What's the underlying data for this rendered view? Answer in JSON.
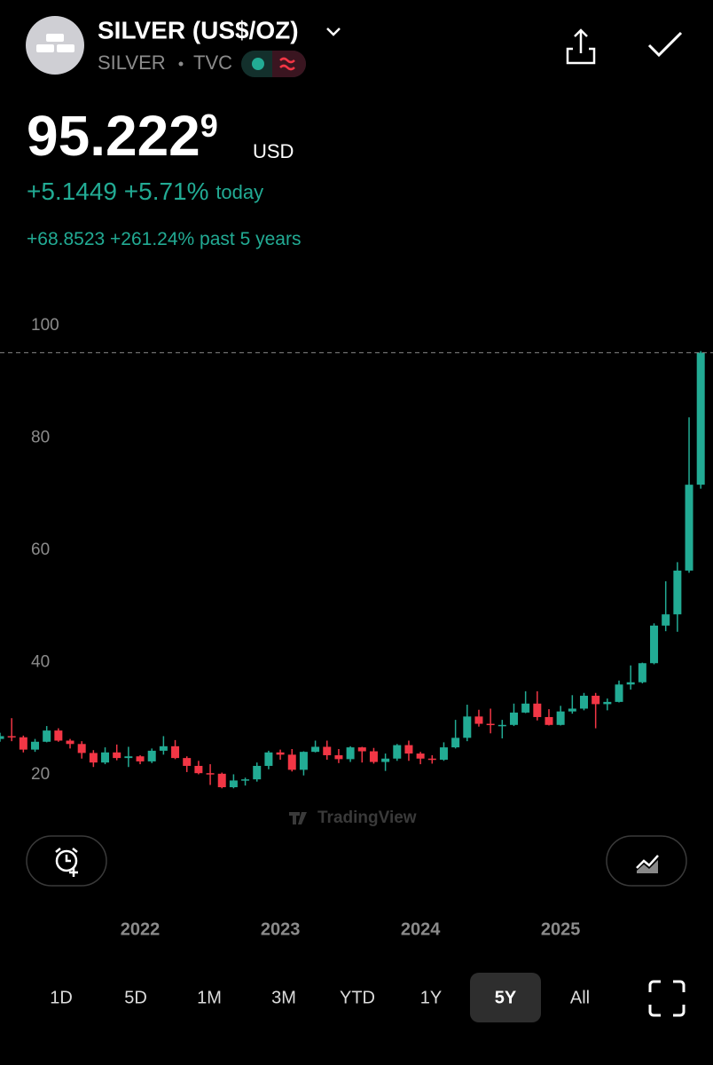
{
  "header": {
    "symbol": "SILVER (US$/OZ)",
    "exchange_name": "SILVER",
    "exchange": "TVC"
  },
  "quote": {
    "price": "95.222",
    "price_sup": "9",
    "currency": "USD",
    "change_today": "+5.1449",
    "change_today_pct": "+5.71%",
    "today_label": "today",
    "change_period": "+68.8523",
    "change_period_pct": "+261.24%",
    "period_label": "past 5 years"
  },
  "chart_data": {
    "type": "candlestick",
    "categories": [
      null,
      null,
      null,
      null,
      null,
      null,
      null,
      null,
      null,
      null,
      null,
      null,
      "2022",
      null,
      null,
      null,
      null,
      null,
      null,
      null,
      null,
      null,
      null,
      null,
      "2023",
      null,
      null,
      null,
      null,
      null,
      null,
      null,
      null,
      null,
      null,
      null,
      "2024",
      null,
      null,
      null,
      null,
      null,
      null,
      null,
      null,
      null,
      null,
      null,
      "2025",
      null,
      null,
      null,
      null,
      null,
      null,
      null,
      null,
      null,
      null,
      null,
      null
    ],
    "open": [
      26.4,
      26.9,
      26.7,
      24.5,
      25.9,
      27.9,
      26.1,
      25.5,
      23.9,
      22.2,
      24.0,
      23.0,
      23.3,
      22.4,
      24.3,
      25.1,
      23.0,
      21.6,
      20.3,
      20.2,
      17.8,
      19.0,
      19.2,
      21.6,
      24.0,
      23.6,
      20.9,
      24.1,
      25.0,
      23.5,
      22.8,
      24.9,
      24.2,
      22.3,
      22.9,
      25.3,
      23.8,
      22.9,
      22.7,
      24.9,
      26.6,
      30.4,
      29.1,
      28.9,
      28.9,
      31.1,
      32.7,
      30.3,
      28.9,
      31.3,
      31.8,
      34.1,
      32.6,
      33.0,
      36.1,
      36.5,
      39.9,
      46.6,
      48.6,
      56.4,
      71.7
    ],
    "high": [
      27.5,
      30.1,
      27.0,
      26.4,
      28.7,
      28.3,
      26.4,
      26.0,
      24.4,
      24.9,
      25.4,
      25.0,
      23.5,
      24.7,
      26.9,
      26.2,
      23.3,
      22.5,
      21.9,
      20.4,
      20.1,
      19.5,
      22.2,
      24.3,
      24.5,
      24.6,
      24.2,
      26.1,
      26.1,
      24.6,
      25.1,
      25.0,
      24.8,
      23.8,
      25.5,
      26.1,
      24.1,
      23.5,
      25.8,
      29.8,
      32.5,
      31.6,
      31.8,
      29.8,
      32.7,
      34.9,
      34.9,
      31.7,
      32.3,
      34.2,
      34.6,
      34.6,
      33.6,
      36.8,
      39.5,
      40.0,
      47.0,
      54.5,
      57.9,
      83.7,
      95.5
    ],
    "low": [
      25.9,
      26.0,
      24.0,
      24.1,
      25.8,
      25.9,
      24.7,
      22.9,
      21.4,
      21.9,
      22.6,
      21.4,
      21.9,
      22.1,
      23.6,
      22.8,
      20.5,
      20.1,
      18.2,
      17.6,
      17.6,
      18.1,
      18.8,
      21.0,
      22.7,
      20.6,
      19.9,
      24.0,
      22.7,
      22.1,
      22.3,
      22.2,
      22.0,
      20.7,
      22.5,
      22.5,
      21.9,
      22.0,
      22.5,
      24.7,
      26.0,
      28.6,
      27.4,
      26.5,
      28.7,
      31.0,
      29.7,
      28.8,
      28.8,
      30.9,
      31.5,
      28.3,
      31.5,
      32.9,
      35.2,
      36.3,
      39.7,
      45.6,
      45.5,
      56.0,
      71.0
    ],
    "close": [
      26.9,
      26.7,
      24.5,
      25.9,
      27.9,
      26.1,
      25.5,
      23.9,
      22.2,
      24.0,
      23.0,
      23.3,
      22.4,
      24.3,
      25.1,
      23.0,
      21.6,
      20.3,
      20.2,
      17.8,
      19.0,
      19.2,
      21.6,
      24.0,
      23.6,
      20.9,
      24.1,
      25.0,
      23.5,
      22.8,
      24.9,
      24.2,
      22.3,
      22.9,
      25.3,
      23.8,
      22.9,
      22.7,
      24.9,
      26.6,
      30.4,
      29.1,
      28.9,
      28.9,
      31.1,
      32.7,
      30.3,
      28.9,
      31.3,
      31.8,
      34.1,
      32.6,
      33.0,
      36.1,
      36.5,
      39.9,
      46.6,
      48.6,
      56.4,
      71.7,
      95.2229
    ],
    "up_color": "#22ab94",
    "down_color": "#f23645",
    "ylim": [
      11,
      104.3
    ],
    "yticks": [
      20,
      40,
      60,
      80,
      100
    ],
    "watermark": "TradingView"
  },
  "ranges": [
    "1D",
    "5D",
    "1M",
    "3M",
    "YTD",
    "1Y",
    "5Y",
    "All"
  ],
  "selected_range": 6
}
